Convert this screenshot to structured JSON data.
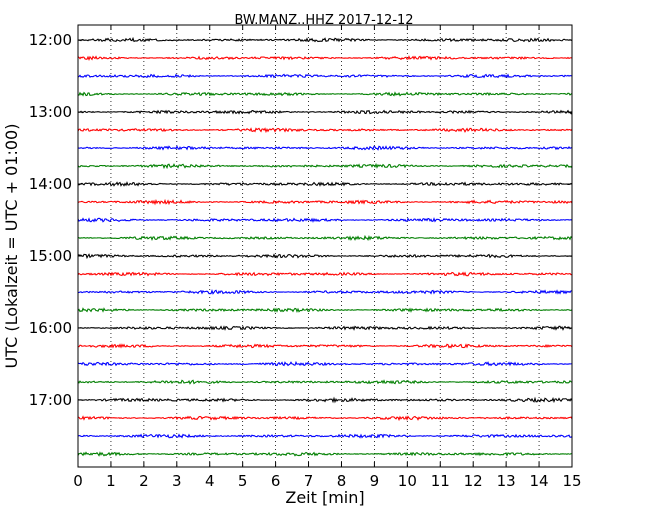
{
  "chart_data": {
    "type": "line",
    "title": "BW.MANZ..HHZ 2017-12-12",
    "xlabel": "Zeit  [min]",
    "ylabel": "UTC (Lokalzeit = UTC + 01:00)",
    "xlim": [
      0,
      15
    ],
    "x_ticks": [
      "0",
      "1",
      "2",
      "3",
      "4",
      "5",
      "6",
      "7",
      "8",
      "9",
      "10",
      "11",
      "12",
      "13",
      "14",
      "15"
    ],
    "y_ticks": [
      "12:00",
      "13:00",
      "14:00",
      "15:00",
      "16:00",
      "17:00"
    ],
    "trace_interval_min": 15,
    "trace_colors": [
      "#000000",
      "#ff0000",
      "#0000ff",
      "#007f00"
    ],
    "trace_count": 24,
    "grid": "vertical dotted lines at each minute"
  }
}
